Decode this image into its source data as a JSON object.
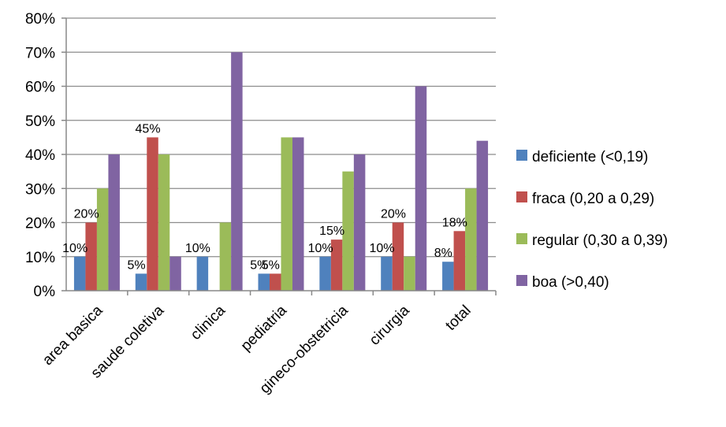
{
  "chart_data": {
    "type": "bar",
    "title": "",
    "xlabel": "",
    "ylabel": "",
    "ylim": [
      0,
      80
    ],
    "y_ticks": [
      "0%",
      "10%",
      "20%",
      "30%",
      "40%",
      "50%",
      "60%",
      "70%",
      "80%"
    ],
    "grid": "horizontal",
    "legend_position": "right",
    "categories": [
      "area basica",
      "saude coletiva",
      "clinica",
      "pediatria",
      "gineco-obstetricia",
      "cirurgia",
      "total"
    ],
    "series": [
      {
        "name": "deficiente (<0,19)",
        "color": "#4f81bd",
        "values": [
          10,
          5,
          10,
          5,
          10,
          10,
          8.5
        ]
      },
      {
        "name": "fraca (0,20 a 0,29)",
        "color": "#c0504d",
        "values": [
          20,
          45,
          0,
          5,
          15,
          20,
          17.5
        ]
      },
      {
        "name": "regular (0,30 a 0,39)",
        "color": "#9bbb59",
        "values": [
          30,
          40,
          20,
          45,
          35,
          10,
          30
        ]
      },
      {
        "name": "boa (>0,40)",
        "color": "#8064a2",
        "values": [
          40,
          10,
          70,
          45,
          40,
          60,
          44
        ]
      }
    ],
    "annotations": [
      {
        "text": "10%",
        "category": "area basica",
        "series": "deficiente (<0,19)"
      },
      {
        "text": "20%",
        "category": "area basica",
        "series": "fraca (0,20 a 0,29)"
      },
      {
        "text": "5%",
        "category": "saude coletiva",
        "series": "deficiente (<0,19)"
      },
      {
        "text": "45%",
        "category": "saude coletiva",
        "series": "fraca (0,20 a 0,29)"
      },
      {
        "text": "10%",
        "category": "clinica",
        "series": "deficiente (<0,19)"
      },
      {
        "text": "5%",
        "category": "pediatria",
        "series": "deficiente (<0,19)"
      },
      {
        "text": "5%",
        "category": "pediatria",
        "series": "fraca (0,20 a 0,29)"
      },
      {
        "text": "10%",
        "category": "gineco-obstetricia",
        "series": "deficiente (<0,19)"
      },
      {
        "text": "15%",
        "category": "gineco-obstetricia",
        "series": "fraca (0,20 a 0,29)"
      },
      {
        "text": "10%",
        "category": "cirurgia",
        "series": "deficiente (<0,19)"
      },
      {
        "text": "20%",
        "category": "cirurgia",
        "series": "fraca (0,20 a 0,29)"
      },
      {
        "text": "8%",
        "category": "total",
        "series": "deficiente (<0,19)"
      },
      {
        "text": "18%",
        "category": "total",
        "series": "fraca (0,20 a 0,29)"
      }
    ]
  }
}
